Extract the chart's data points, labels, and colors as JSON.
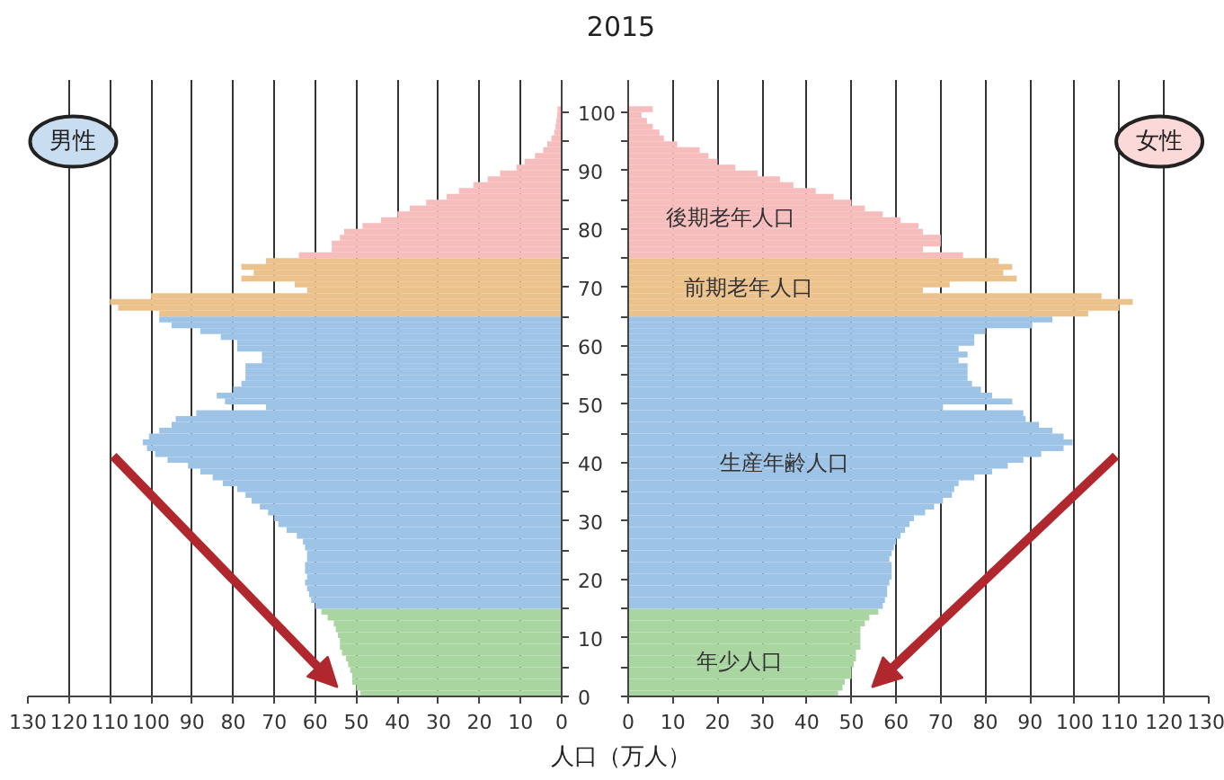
{
  "chart_data": [
    {
      "type": "bar",
      "orientation": "horizontal",
      "title": "2015",
      "xlabel": "人口（万人）",
      "xlim": [
        130,
        0
      ],
      "xticks": [
        0,
        10,
        20,
        30,
        40,
        50,
        60,
        70,
        80,
        90,
        100,
        110,
        120,
        130
      ],
      "ylim": [
        0,
        105.5
      ],
      "yticks": [
        0,
        {
          "value": 5,
          "label": null
        },
        10,
        {
          "value": 15,
          "label": null
        },
        20,
        {
          "value": 25,
          "label": null
        },
        30,
        {
          "value": 35,
          "label": null
        },
        40,
        {
          "value": 45,
          "label": null
        },
        50,
        {
          "value": 55,
          "label": null
        },
        60,
        {
          "value": 65,
          "label": null
        },
        70,
        {
          "value": 75,
          "label": null
        },
        80,
        {
          "value": 85,
          "label": null
        },
        90,
        {
          "value": 95,
          "label": null
        },
        100
      ],
      "grid": "x",
      "annotations": [
        "男性"
      ],
      "series": [
        {
          "color": "#a8d5a0",
          "x": [
            0,
            1,
            2,
            3,
            4,
            5,
            6,
            7,
            8,
            9,
            10,
            11,
            12,
            13,
            14
          ],
          "values": [
            49,
            50,
            51,
            51,
            51.5,
            52,
            52.5,
            53.5,
            54,
            54,
            54.5,
            55,
            55.5,
            57,
            58.5
          ]
        },
        {
          "color": "#9dc3e6",
          "x": [
            15,
            16,
            17,
            18,
            19,
            20,
            21,
            22,
            23,
            24,
            25,
            26,
            27,
            28,
            29,
            30,
            31,
            32,
            33,
            34,
            35,
            36,
            37,
            38,
            39,
            40,
            41,
            42,
            43,
            44,
            45,
            46,
            47,
            48,
            49,
            50,
            51,
            52,
            53,
            54,
            55,
            56,
            57,
            58,
            59,
            60,
            61,
            62,
            63,
            64
          ],
          "values": [
            60,
            61,
            61.5,
            62,
            62.5,
            62,
            62.5,
            62.5,
            62,
            62,
            62.5,
            63,
            64.5,
            67,
            69,
            70,
            71.5,
            73.5,
            75.5,
            77,
            79,
            82.5,
            85,
            88,
            91,
            96,
            99,
            101,
            102,
            100.5,
            98,
            95,
            94,
            89,
            72,
            82,
            84,
            80,
            78,
            77,
            77,
            77,
            73,
            73,
            79,
            79,
            83,
            88,
            95,
            98
          ]
        },
        {
          "color": "#ecc28c",
          "x": [
            65,
            66,
            67,
            68,
            69,
            70,
            71,
            72,
            73,
            74
          ],
          "values": [
            98,
            108,
            110,
            100,
            62,
            65,
            78,
            75,
            78,
            72
          ]
        },
        {
          "color": "#f7bcbc",
          "x": [
            75,
            76,
            77,
            78,
            79,
            80,
            81,
            82,
            83,
            84,
            85,
            86,
            87,
            88,
            89,
            90,
            91,
            92,
            93,
            94,
            95,
            96,
            97,
            98,
            99,
            100
          ],
          "values": [
            64,
            56,
            56,
            54,
            53,
            48.5,
            44,
            40,
            37,
            33,
            28,
            25,
            21.5,
            18,
            15,
            11,
            9,
            6.5,
            4.5,
            3.5,
            2.5,
            1.8,
            1.5,
            1.3,
            1.1,
            1
          ]
        }
      ]
    },
    {
      "type": "bar",
      "orientation": "horizontal",
      "xlim": [
        0,
        130
      ],
      "xticks": [
        0,
        10,
        20,
        30,
        40,
        50,
        60,
        70,
        80,
        90,
        100,
        110,
        120,
        130
      ],
      "ylim": [
        0,
        105.5
      ],
      "yticks": [
        0,
        {
          "value": 5,
          "label": null
        },
        10,
        {
          "value": 15,
          "label": null
        },
        20,
        {
          "value": 25,
          "label": null
        },
        30,
        {
          "value": 35,
          "label": null
        },
        40,
        {
          "value": 45,
          "label": null
        },
        50,
        {
          "value": 55,
          "label": null
        },
        60,
        {
          "value": 65,
          "label": null
        },
        70,
        {
          "value": 75,
          "label": null
        },
        80,
        {
          "value": 85,
          "label": null
        },
        90,
        {
          "value": 95,
          "label": null
        },
        100
      ],
      "grid": "x",
      "tick_labels": "x",
      "annotations": [
        "女性",
        {
          "text": "後期老年人口",
          "x": 23,
          "y": 82
        },
        {
          "text": "前期老年人口",
          "x": 27,
          "y": 70
        },
        {
          "text": "生産年齢人口",
          "x": 35,
          "y": 40
        },
        {
          "text": "年少人口",
          "x": 25,
          "y": 6
        }
      ],
      "series": [
        {
          "color": "#a8d5a0",
          "x": [
            0,
            1,
            2,
            3,
            4,
            5,
            6,
            7,
            8,
            9,
            10,
            11,
            12,
            13,
            14
          ],
          "values": [
            47,
            48,
            48.5,
            50,
            50,
            50.5,
            51,
            51,
            52,
            52,
            52,
            52,
            53,
            54,
            56
          ]
        },
        {
          "color": "#9dc3e6",
          "x": [
            15,
            16,
            17,
            18,
            19,
            20,
            21,
            22,
            23,
            24,
            25,
            26,
            27,
            28,
            29,
            30,
            31,
            32,
            33,
            34,
            35,
            36,
            37,
            38,
            39,
            40,
            41,
            42,
            43,
            44,
            45,
            46,
            47,
            48,
            49,
            50,
            51,
            52,
            53,
            54,
            55,
            56,
            57,
            58,
            59,
            60,
            61,
            62,
            63,
            64
          ],
          "values": [
            57,
            57.5,
            58,
            58,
            58.5,
            59,
            59,
            59,
            58.5,
            59,
            59.5,
            60,
            61,
            62,
            63,
            64,
            66.5,
            68.5,
            70.5,
            72.5,
            73,
            74,
            77.5,
            81.5,
            85,
            88.5,
            92.5,
            97.5,
            99.5,
            97.5,
            95,
            92,
            89,
            88.5,
            70.5,
            86,
            81.5,
            79,
            77,
            76,
            76,
            76,
            74,
            76,
            74,
            77.5,
            77.5,
            80,
            90.5,
            95
          ]
        },
        {
          "color": "#ecc28c",
          "x": [
            65,
            66,
            67,
            68,
            69,
            70,
            71,
            72,
            73,
            74
          ],
          "values": [
            103,
            110,
            113,
            106,
            66,
            72,
            87,
            84,
            86,
            83
          ]
        },
        {
          "color": "#f7bcbc",
          "x": [
            75,
            76,
            77,
            78,
            79,
            80,
            81,
            82,
            83,
            84,
            85,
            86,
            87,
            88,
            89,
            90,
            91,
            92,
            93,
            94,
            95,
            96,
            97,
            98,
            99,
            100
          ],
          "values": [
            75,
            66,
            70,
            70,
            66,
            65,
            61,
            57,
            53,
            50,
            46,
            42,
            37,
            34,
            29,
            24,
            20,
            18,
            16,
            11,
            8,
            7,
            5.5,
            4.2,
            3,
            5.5
          ]
        }
      ]
    }
  ]
}
